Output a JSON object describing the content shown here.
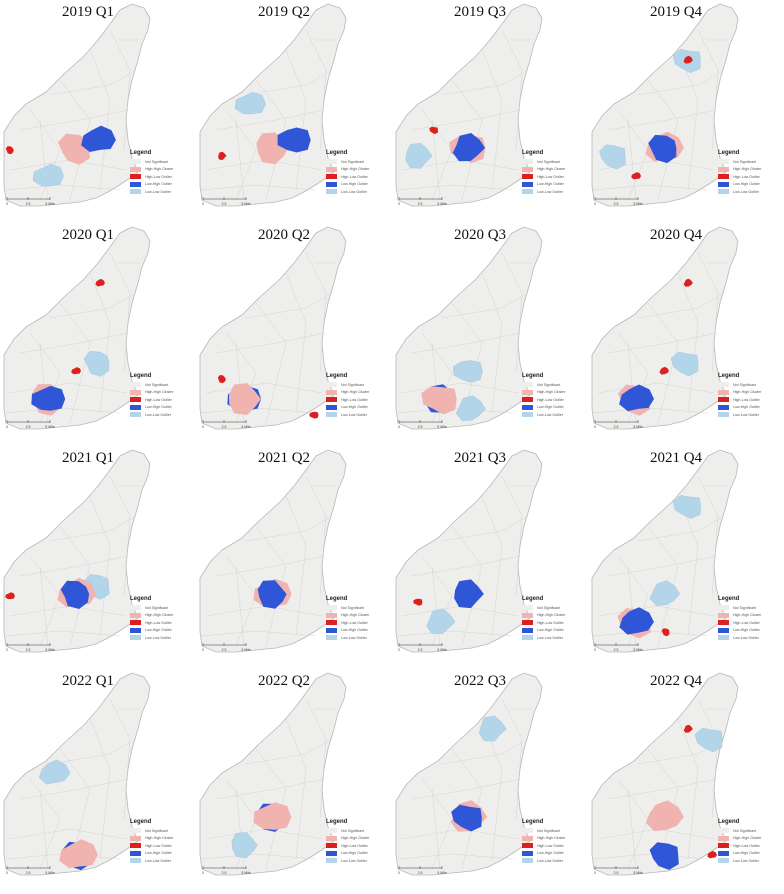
{
  "colors": {
    "not_significant": "#eeeeec",
    "high_high": "#f0b3b0",
    "high_low": "#dc1f1f",
    "low_high": "#2f56d6",
    "low_low": "#b3d5ea",
    "boundary": "#c8c8c8"
  },
  "legend": {
    "title": "Legend",
    "items": [
      {
        "label": "Not Significant",
        "category": "not_significant"
      },
      {
        "label": "High-High Cluster",
        "category": "high_high"
      },
      {
        "label": "High-Low Outlier",
        "category": "high_low"
      },
      {
        "label": "Low-High Outlier",
        "category": "low_high"
      },
      {
        "label": "Low-Low Outlier",
        "category": "low_low"
      }
    ]
  },
  "scale": {
    "labels": [
      "0",
      "2.5",
      "5 Mile"
    ]
  },
  "panels": [
    {
      "title": "2019 Q1",
      "clusters": [
        {
          "type": "high_high",
          "zone": "center"
        },
        {
          "type": "low_high",
          "zone": "center-east"
        },
        {
          "type": "high_low",
          "zone": "west-edge"
        },
        {
          "type": "low_low",
          "zone": "southwest"
        }
      ]
    },
    {
      "title": "2019 Q2",
      "clusters": [
        {
          "type": "low_low",
          "zone": "northwest"
        },
        {
          "type": "high_high",
          "zone": "center"
        },
        {
          "type": "low_high",
          "zone": "center-east"
        },
        {
          "type": "high_low",
          "zone": "west"
        }
      ]
    },
    {
      "title": "2019 Q3",
      "clusters": [
        {
          "type": "low_low",
          "zone": "west"
        },
        {
          "type": "high_high",
          "zone": "center"
        },
        {
          "type": "low_high",
          "zone": "center"
        },
        {
          "type": "high_low",
          "zone": "west-center"
        }
      ]
    },
    {
      "title": "2019 Q4",
      "clusters": [
        {
          "type": "low_low",
          "zone": "north"
        },
        {
          "type": "high_low",
          "zone": "north"
        },
        {
          "type": "low_low",
          "zone": "west"
        },
        {
          "type": "high_high",
          "zone": "center"
        },
        {
          "type": "low_high",
          "zone": "center"
        },
        {
          "type": "high_low",
          "zone": "southwest"
        }
      ]
    },
    {
      "title": "2020 Q1",
      "clusters": [
        {
          "type": "high_low",
          "zone": "north"
        },
        {
          "type": "low_low",
          "zone": "center-east"
        },
        {
          "type": "high_low",
          "zone": "center"
        },
        {
          "type": "high_high",
          "zone": "southwest"
        },
        {
          "type": "low_high",
          "zone": "southwest"
        }
      ]
    },
    {
      "title": "2020 Q2",
      "clusters": [
        {
          "type": "high_low",
          "zone": "west"
        },
        {
          "type": "low_high",
          "zone": "southwest"
        },
        {
          "type": "high_high",
          "zone": "southwest"
        },
        {
          "type": "high_low",
          "zone": "south-east"
        }
      ]
    },
    {
      "title": "2020 Q3",
      "clusters": [
        {
          "type": "low_low",
          "zone": "center"
        },
        {
          "type": "low_high",
          "zone": "southwest"
        },
        {
          "type": "high_high",
          "zone": "southwest"
        },
        {
          "type": "low_low",
          "zone": "south"
        }
      ]
    },
    {
      "title": "2020 Q4",
      "clusters": [
        {
          "type": "high_low",
          "zone": "north"
        },
        {
          "type": "low_low",
          "zone": "center-east"
        },
        {
          "type": "high_low",
          "zone": "center"
        },
        {
          "type": "high_high",
          "zone": "southwest"
        },
        {
          "type": "low_high",
          "zone": "southwest"
        }
      ]
    },
    {
      "title": "2021 Q1",
      "clusters": [
        {
          "type": "low_low",
          "zone": "center-east"
        },
        {
          "type": "high_high",
          "zone": "center"
        },
        {
          "type": "low_high",
          "zone": "center"
        },
        {
          "type": "high_low",
          "zone": "west-edge"
        }
      ]
    },
    {
      "title": "2021 Q2",
      "clusters": [
        {
          "type": "high_high",
          "zone": "center"
        },
        {
          "type": "low_high",
          "zone": "center"
        }
      ]
    },
    {
      "title": "2021 Q3",
      "clusters": [
        {
          "type": "low_high",
          "zone": "center"
        },
        {
          "type": "high_low",
          "zone": "west"
        },
        {
          "type": "low_low",
          "zone": "southwest"
        }
      ]
    },
    {
      "title": "2021 Q4",
      "clusters": [
        {
          "type": "low_low",
          "zone": "north"
        },
        {
          "type": "low_low",
          "zone": "center"
        },
        {
          "type": "high_high",
          "zone": "southwest"
        },
        {
          "type": "low_high",
          "zone": "southwest"
        },
        {
          "type": "high_low",
          "zone": "south"
        }
      ]
    },
    {
      "title": "2022 Q1",
      "clusters": [
        {
          "type": "low_low",
          "zone": "northwest"
        },
        {
          "type": "low_high",
          "zone": "south"
        },
        {
          "type": "high_high",
          "zone": "south"
        }
      ]
    },
    {
      "title": "2022 Q2",
      "clusters": [
        {
          "type": "low_high",
          "zone": "center"
        },
        {
          "type": "high_high",
          "zone": "center"
        },
        {
          "type": "low_low",
          "zone": "southwest"
        }
      ]
    },
    {
      "title": "2022 Q3",
      "clusters": [
        {
          "type": "high_low",
          "zone": "north"
        },
        {
          "type": "low_low",
          "zone": "north"
        },
        {
          "type": "low_low",
          "zone": "center"
        },
        {
          "type": "high_high",
          "zone": "center"
        },
        {
          "type": "low_high",
          "zone": "center"
        }
      ]
    },
    {
      "title": "2022 Q4",
      "clusters": [
        {
          "type": "high_low",
          "zone": "north"
        },
        {
          "type": "low_low",
          "zone": "northeast"
        },
        {
          "type": "high_high",
          "zone": "center"
        },
        {
          "type": "low_high",
          "zone": "south"
        },
        {
          "type": "high_low",
          "zone": "southeast"
        }
      ]
    }
  ]
}
